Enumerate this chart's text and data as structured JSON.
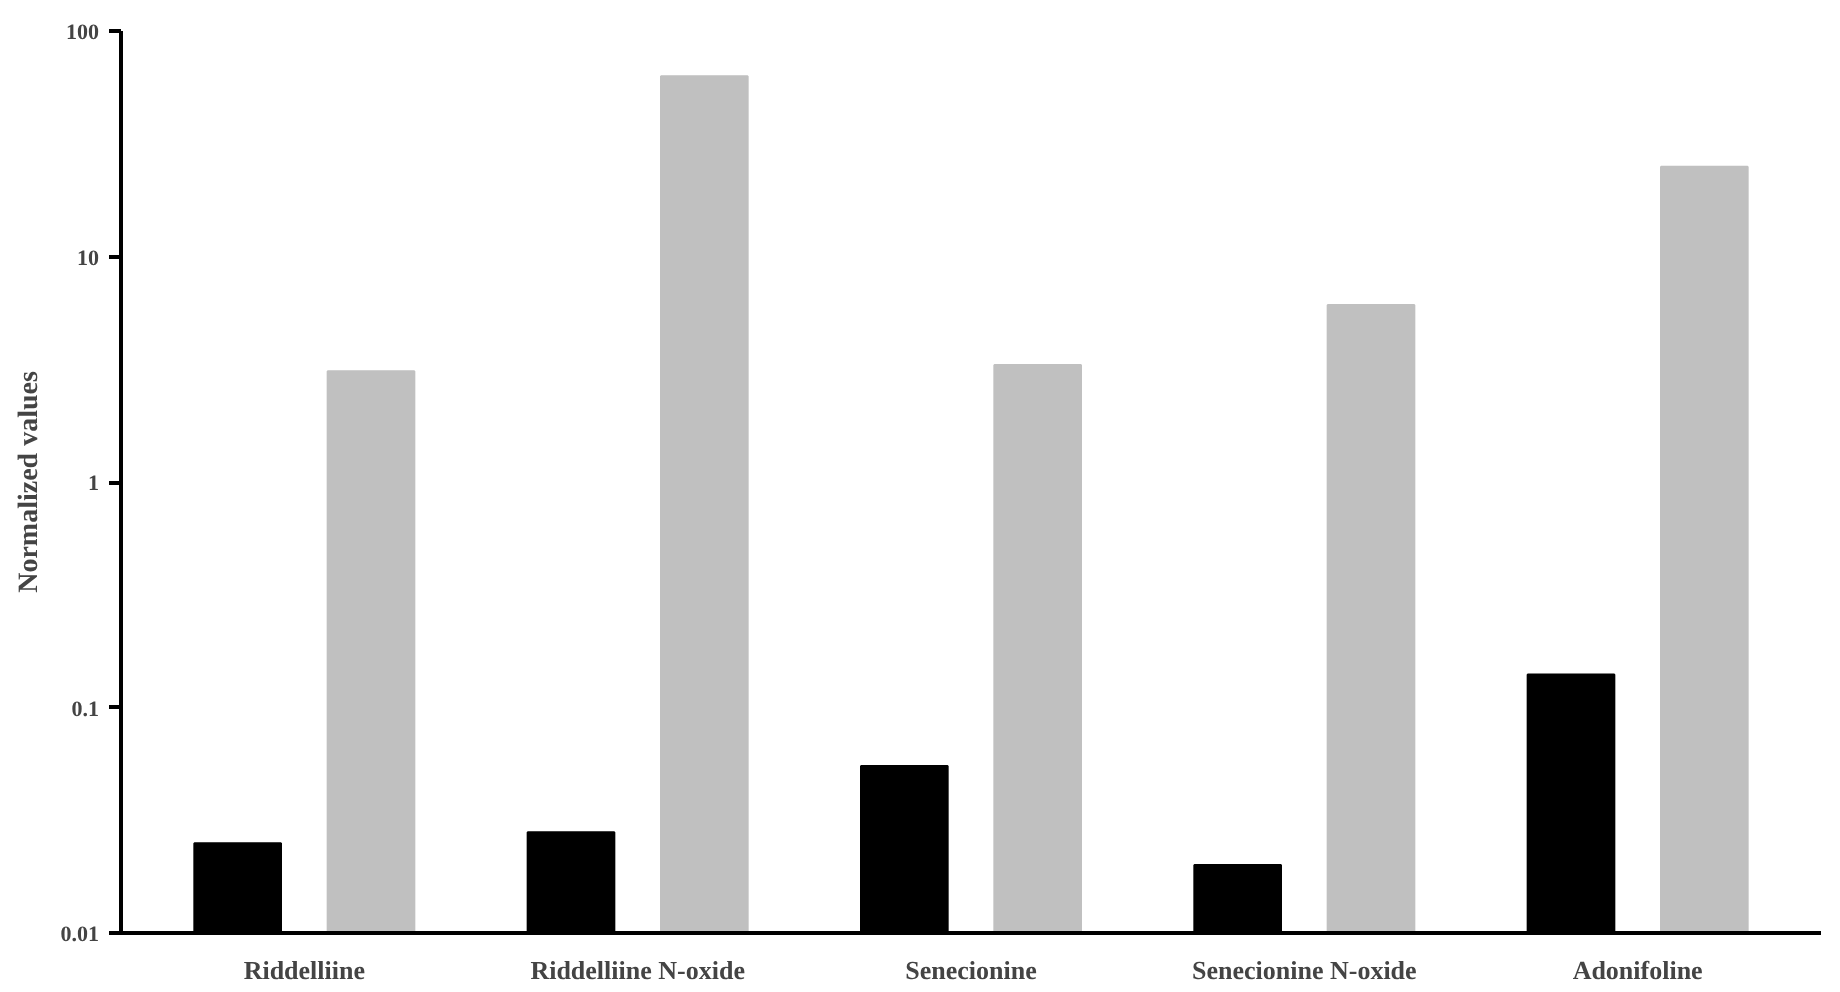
{
  "chart_data": {
    "type": "bar",
    "ylabel": "Normalized values",
    "log": "y",
    "grid": false,
    "categories": [
      "Riddelliine",
      "Riddelliine N-oxide",
      "Senecionine",
      "Senecionine N-oxide",
      "Adonifoline"
    ],
    "series": [
      {
        "color": "#000000",
        "values": [
          0.025,
          0.028,
          0.055,
          0.02,
          0.14
        ]
      },
      {
        "color": "#c0c0c0",
        "values": [
          3.1,
          63,
          3.3,
          6.1,
          25
        ]
      }
    ],
    "ylim": [
      0.01,
      100
    ],
    "yticks": [
      0.01,
      0.1,
      1,
      10,
      100
    ]
  }
}
